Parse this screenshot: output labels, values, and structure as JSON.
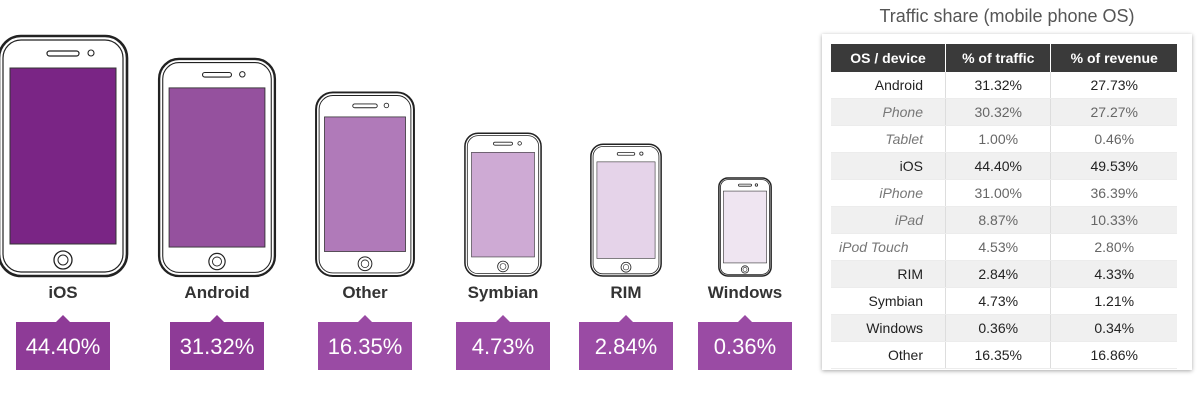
{
  "chart_data": {
    "type": "bar",
    "categories": [
      "iOS",
      "Android",
      "Other",
      "Symbian",
      "RIM",
      "Windows"
    ],
    "values": [
      44.4,
      31.32,
      16.35,
      4.73,
      2.84,
      0.36
    ],
    "value_labels": [
      "44.40%",
      "31.32%",
      "16.35%",
      "4.73%",
      "2.84%",
      "0.36%"
    ],
    "title": "",
    "xlabel": "",
    "ylabel": "",
    "colors": [
      "#7a2585",
      "#95519e",
      "#b07ab9",
      "#ceaad4",
      "#e5d3e9",
      "#efe5f1"
    ],
    "badge_colors": [
      "#8e3b97",
      "#8e3b97",
      "#9a4ba4",
      "#9a4ba4",
      "#9a4ba4",
      "#9a4ba4"
    ]
  },
  "table": {
    "title": "Traffic share (mobile phone OS)",
    "headers": [
      "OS / device",
      "% of traffic",
      "% of revenue"
    ],
    "rows": [
      {
        "name": "Android",
        "traffic": "31.32%",
        "revenue": "27.73%",
        "level": 0
      },
      {
        "name": "Phone",
        "traffic": "30.32%",
        "revenue": "27.27%",
        "level": 1
      },
      {
        "name": "Tablet",
        "traffic": "1.00%",
        "revenue": "0.46%",
        "level": 1
      },
      {
        "name": "iOS",
        "traffic": "44.40%",
        "revenue": "49.53%",
        "level": 0
      },
      {
        "name": "iPhone",
        "traffic": "31.00%",
        "revenue": "36.39%",
        "level": 1
      },
      {
        "name": "iPad",
        "traffic": "8.87%",
        "revenue": "10.33%",
        "level": 1
      },
      {
        "name": "iPod Touch",
        "traffic": "4.53%",
        "revenue": "2.80%",
        "level": 2
      },
      {
        "name": "RIM",
        "traffic": "2.84%",
        "revenue": "4.33%",
        "level": 0
      },
      {
        "name": "Symbian",
        "traffic": "4.73%",
        "revenue": "1.21%",
        "level": 0
      },
      {
        "name": "Windows",
        "traffic": "0.36%",
        "revenue": "0.34%",
        "level": 0
      },
      {
        "name": "Other",
        "traffic": "16.35%",
        "revenue": "16.86%",
        "level": 0
      }
    ]
  }
}
